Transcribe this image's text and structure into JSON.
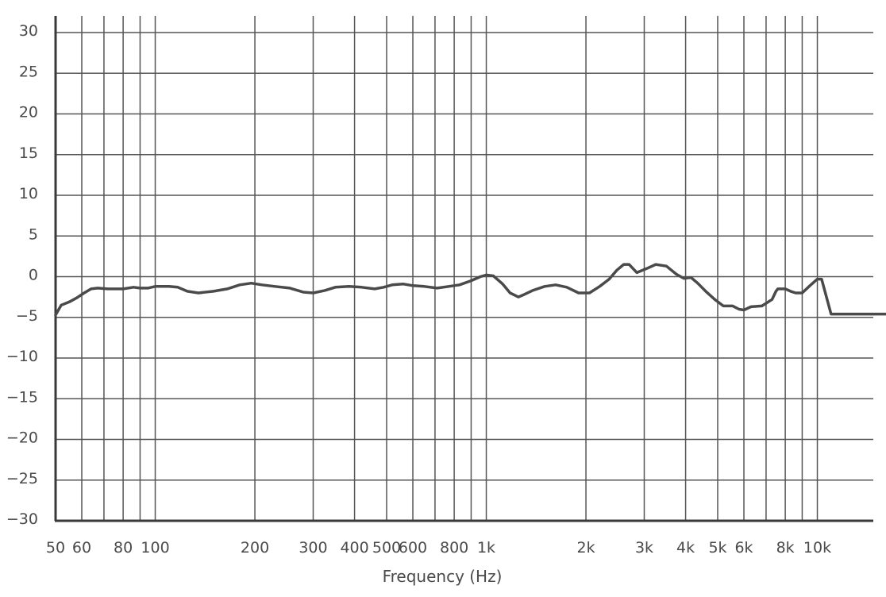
{
  "chart_data": {
    "type": "line",
    "title": "",
    "xlabel": "Frequency (Hz)",
    "ylabel": "",
    "x_scale": "log",
    "xlim": [
      50,
      20000
    ],
    "ylim": [
      -30,
      30
    ],
    "grid": true,
    "x_grid_lines": [
      60,
      70,
      80,
      90,
      100,
      200,
      300,
      400,
      500,
      600,
      700,
      800,
      900,
      1000,
      2000,
      3000,
      4000,
      5000,
      6000,
      7000,
      8000,
      9000,
      10000
    ],
    "x_ticks": [
      {
        "value": 50,
        "label": "50"
      },
      {
        "value": 60,
        "label": "60"
      },
      {
        "value": 80,
        "label": "80"
      },
      {
        "value": 100,
        "label": "100"
      },
      {
        "value": 200,
        "label": "200"
      },
      {
        "value": 300,
        "label": "300"
      },
      {
        "value": 400,
        "label": "400"
      },
      {
        "value": 500,
        "label": "500"
      },
      {
        "value": 600,
        "label": "600"
      },
      {
        "value": 800,
        "label": "800"
      },
      {
        "value": 1000,
        "label": "1k"
      },
      {
        "value": 2000,
        "label": "2k"
      },
      {
        "value": 3000,
        "label": "3k"
      },
      {
        "value": 4000,
        "label": "4k"
      },
      {
        "value": 5000,
        "label": "5k"
      },
      {
        "value": 6000,
        "label": "6k"
      },
      {
        "value": 8000,
        "label": "8k"
      },
      {
        "value": 10000,
        "label": "10k"
      }
    ],
    "y_ticks": [
      {
        "value": 30,
        "label": "30"
      },
      {
        "value": 25,
        "label": "25"
      },
      {
        "value": 20,
        "label": "20"
      },
      {
        "value": 15,
        "label": "15"
      },
      {
        "value": 10,
        "label": "10"
      },
      {
        "value": 5,
        "label": "5"
      },
      {
        "value": 0,
        "label": "0"
      },
      {
        "value": -5,
        "label": "−5"
      },
      {
        "value": -10,
        "label": "−10"
      },
      {
        "value": -15,
        "label": "−15"
      },
      {
        "value": -20,
        "label": "−20"
      },
      {
        "value": -25,
        "label": "−25"
      },
      {
        "value": -30,
        "label": "−30"
      }
    ],
    "series": [
      {
        "color": "#4a4a4a",
        "x": [
          50,
          52,
          55,
          58,
          61,
          64,
          67,
          72,
          80,
          86,
          90,
          95,
          100,
          110,
          117,
          125,
          135,
          150,
          165,
          180,
          195,
          210,
          230,
          255,
          280,
          300,
          325,
          350,
          385,
          420,
          460,
          490,
          520,
          560,
          600,
          650,
          710,
          770,
          830,
          900,
          960,
          1000,
          1050,
          1120,
          1180,
          1250,
          1300,
          1380,
          1500,
          1620,
          1750,
          1900,
          2050,
          2200,
          2350,
          2480,
          2600,
          2700,
          2850,
          3050,
          3250,
          3500,
          3750,
          3950,
          4150,
          4350,
          4600,
          4900,
          5200,
          5550,
          5800,
          6000,
          6300,
          6800,
          7300,
          7500,
          7600,
          7800,
          8000,
          8300,
          8600,
          9000,
          9500,
          10000,
          10300,
          11000,
          11500,
          20000
        ],
        "y": [
          -4.7,
          -3.5,
          -3.1,
          -2.6,
          -2.0,
          -1.5,
          -1.4,
          -1.5,
          -1.5,
          -1.3,
          -1.4,
          -1.4,
          -1.2,
          -1.2,
          -1.3,
          -1.8,
          -2.0,
          -1.8,
          -1.5,
          -1.0,
          -0.8,
          -1.0,
          -1.2,
          -1.4,
          -1.9,
          -2.0,
          -1.7,
          -1.3,
          -1.2,
          -1.3,
          -1.5,
          -1.3,
          -1.0,
          -0.9,
          -1.1,
          -1.2,
          -1.4,
          -1.2,
          -1.0,
          -0.5,
          0.0,
          0.2,
          0.1,
          -0.9,
          -2.0,
          -2.5,
          -2.2,
          -1.7,
          -1.2,
          -1.0,
          -1.3,
          -2.0,
          -2.0,
          -1.2,
          -0.3,
          0.8,
          1.5,
          1.5,
          0.5,
          1.0,
          1.5,
          1.3,
          0.3,
          -0.2,
          -0.1,
          -0.8,
          -1.8,
          -2.8,
          -3.6,
          -3.6,
          -4.0,
          -4.1,
          -3.7,
          -3.6,
          -2.8,
          -1.8,
          -1.5,
          -1.5,
          -1.5,
          -1.8,
          -2.0,
          -2.0,
          -1.1,
          -0.3,
          -0.3,
          -4.6,
          -4.6,
          -4.6
        ]
      }
    ]
  }
}
